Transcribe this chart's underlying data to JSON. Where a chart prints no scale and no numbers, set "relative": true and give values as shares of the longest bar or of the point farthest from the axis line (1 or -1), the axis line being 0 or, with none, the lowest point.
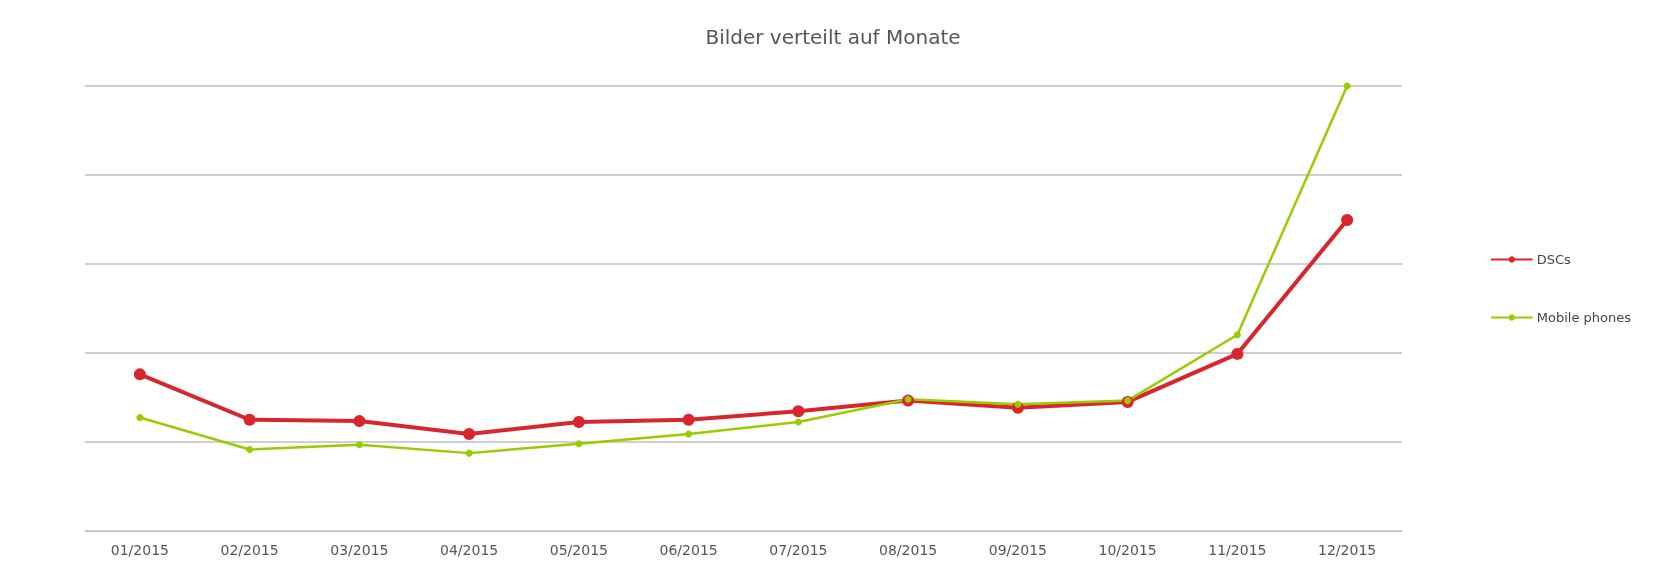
{
  "chart_data": {
    "type": "line",
    "title": "Bilder verteilt auf Monate",
    "relative": true,
    "grid": "y",
    "legend": "right",
    "marker": "circle",
    "line_style": "solid",
    "categories": [
      "01/2015",
      "02/2015",
      "03/2015",
      "04/2015",
      "05/2015",
      "06/2015",
      "07/2015",
      "08/2015",
      "09/2015",
      "10/2015",
      "11/2015",
      "12/2015"
    ],
    "series": [
      {
        "name": "DSCs",
        "color": "#d9262e",
        "values": [
          0.352,
          0.25,
          0.247,
          0.218,
          0.245,
          0.25,
          0.269,
          0.293,
          0.277,
          0.29,
          0.398,
          0.699
        ]
      },
      {
        "name": "Mobile phones",
        "color": "#99cc00",
        "values": [
          0.255,
          0.183,
          0.194,
          0.175,
          0.196,
          0.218,
          0.245,
          0.296,
          0.285,
          0.293,
          0.441,
          1
        ]
      }
    ]
  }
}
